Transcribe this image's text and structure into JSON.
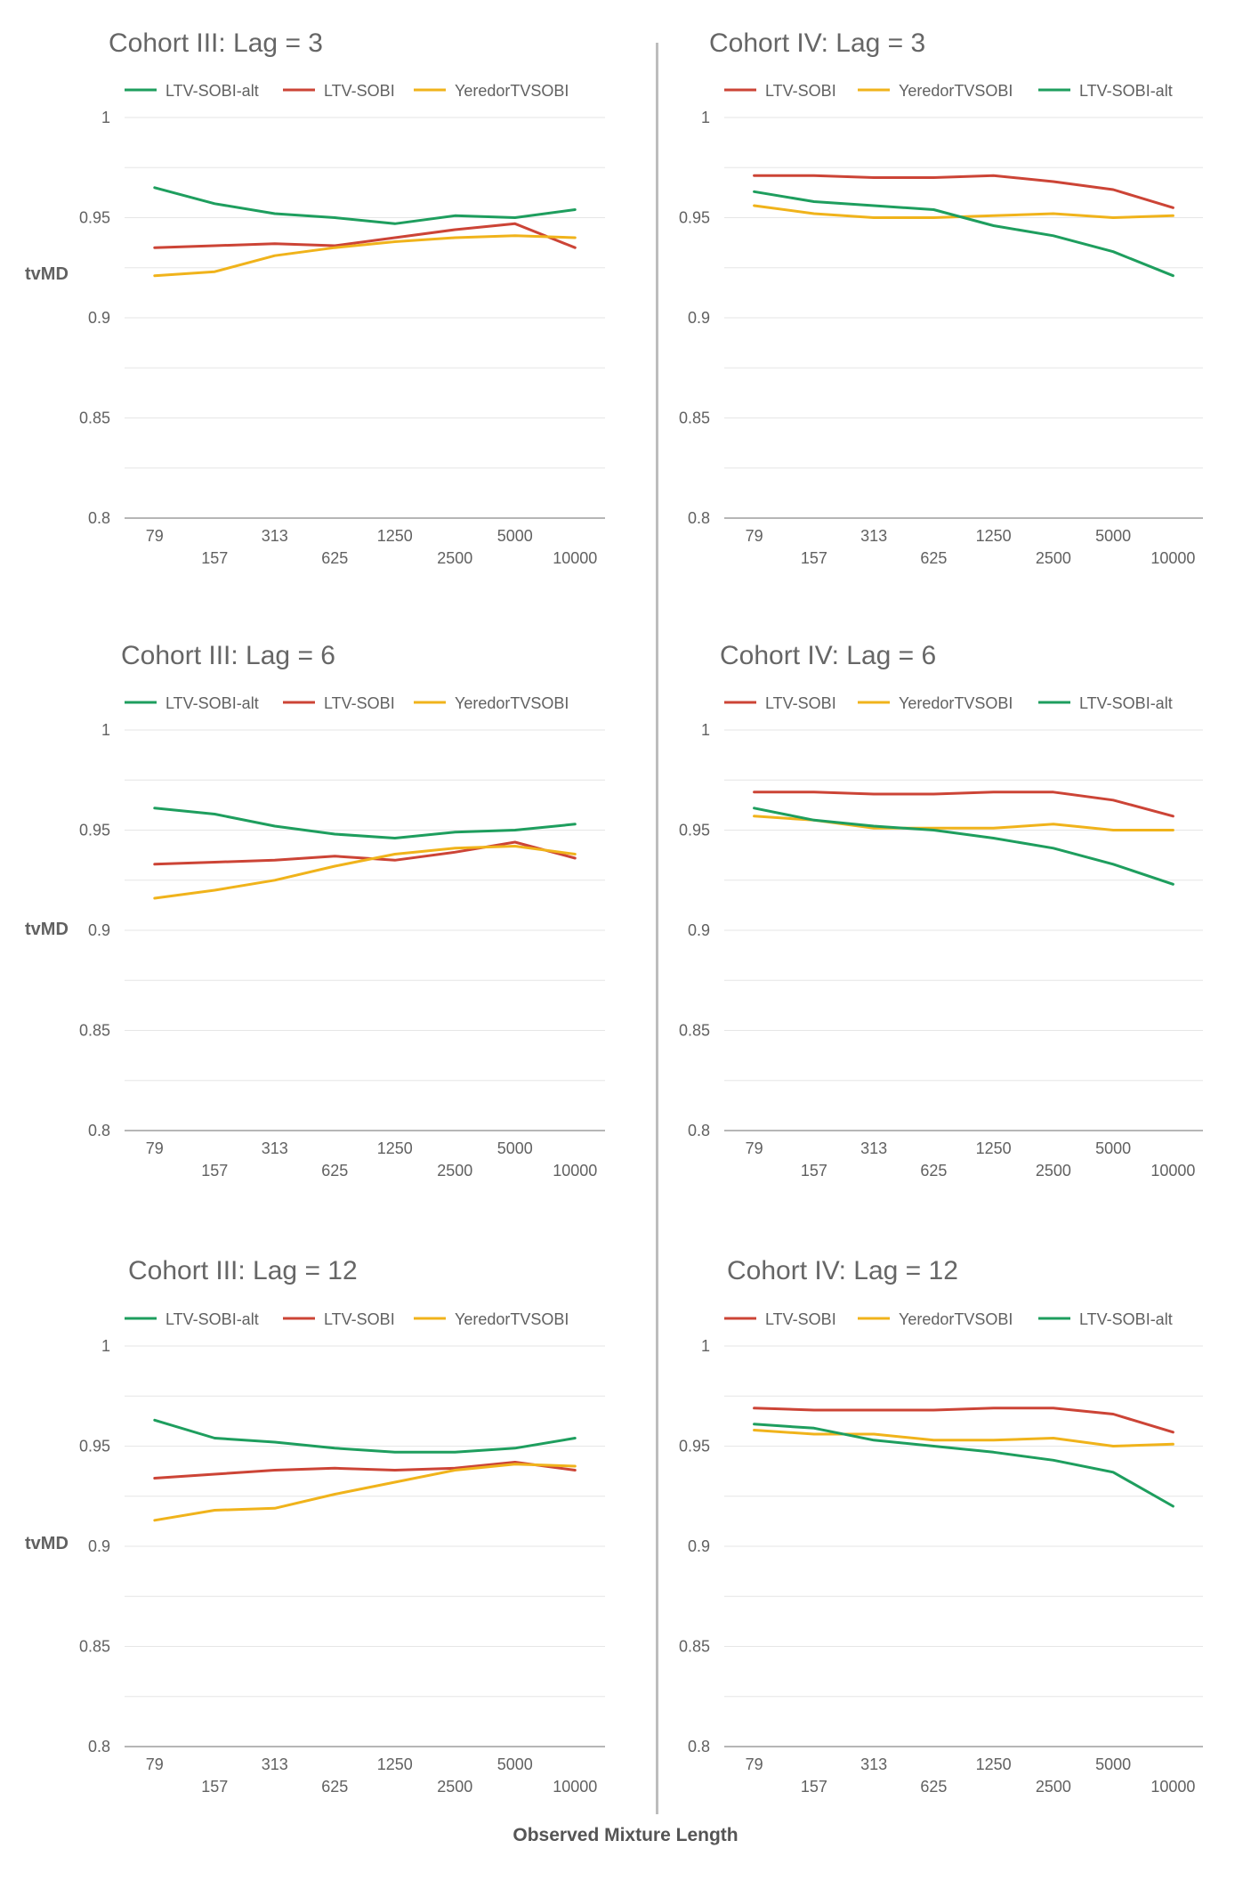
{
  "figure": {
    "xlabel": "Observed Mixture Length",
    "ylabel": "tvMD"
  },
  "colors": {
    "LTV-SOBI-alt": "#1e9e5e",
    "LTV-SOBI": "#cc4436",
    "YeredorTVSOBI": "#f0b31b",
    "grid": "#e6e6e6",
    "axis": "#9e9e9e",
    "text": "#616161",
    "title": "#666666"
  },
  "chart_data": [
    {
      "type": "line",
      "title": "Cohort III: Lag = 3",
      "ylabel": "tvMD",
      "categories": [
        "79",
        "157",
        "313",
        "625",
        "1250",
        "2500",
        "5000",
        "10000"
      ],
      "ylim": [
        0.8,
        1.0
      ],
      "yticks": [
        0.8,
        0.85,
        0.9,
        0.95,
        1
      ],
      "ytick_labels": [
        "0.8",
        "0.85",
        "0.9",
        "0.95",
        "1"
      ],
      "grid": true,
      "legend_position": "top",
      "series": [
        {
          "name": "LTV-SOBI-alt",
          "values": [
            0.965,
            0.957,
            0.952,
            0.95,
            0.947,
            0.951,
            0.95,
            0.954
          ]
        },
        {
          "name": "LTV-SOBI",
          "values": [
            0.935,
            0.936,
            0.937,
            0.936,
            0.94,
            0.944,
            0.947,
            0.935
          ]
        },
        {
          "name": "YeredorTVSOBI",
          "values": [
            0.921,
            0.923,
            0.931,
            0.935,
            0.938,
            0.94,
            0.941,
            0.94
          ]
        }
      ]
    },
    {
      "type": "line",
      "title": "Cohort IV: Lag = 3",
      "ylabel": "",
      "categories": [
        "79",
        "157",
        "313",
        "625",
        "1250",
        "2500",
        "5000",
        "10000"
      ],
      "ylim": [
        0.8,
        1.0
      ],
      "yticks": [
        0.8,
        0.85,
        0.9,
        0.95,
        1
      ],
      "ytick_labels": [
        "0.8",
        "0.85",
        "0.9",
        "0.95",
        "1"
      ],
      "grid": true,
      "legend_position": "top",
      "series": [
        {
          "name": "LTV-SOBI",
          "values": [
            0.971,
            0.971,
            0.97,
            0.97,
            0.971,
            0.968,
            0.964,
            0.955
          ]
        },
        {
          "name": "YeredorTVSOBI",
          "values": [
            0.956,
            0.952,
            0.95,
            0.95,
            0.951,
            0.952,
            0.95,
            0.951
          ]
        },
        {
          "name": "LTV-SOBI-alt",
          "values": [
            0.963,
            0.958,
            0.956,
            0.954,
            0.946,
            0.941,
            0.933,
            0.921
          ]
        }
      ]
    },
    {
      "type": "line",
      "title": "Cohort III: Lag = 6",
      "ylabel": "tvMD",
      "categories": [
        "79",
        "157",
        "313",
        "625",
        "1250",
        "2500",
        "5000",
        "10000"
      ],
      "ylim": [
        0.8,
        1.0
      ],
      "yticks": [
        0.8,
        0.85,
        0.9,
        0.95,
        1
      ],
      "ytick_labels": [
        "0.8",
        "0.85",
        "0.9",
        "0.95",
        "1"
      ],
      "grid": true,
      "legend_position": "top",
      "series": [
        {
          "name": "LTV-SOBI-alt",
          "values": [
            0.961,
            0.958,
            0.952,
            0.948,
            0.946,
            0.949,
            0.95,
            0.953
          ]
        },
        {
          "name": "LTV-SOBI",
          "values": [
            0.933,
            0.934,
            0.935,
            0.937,
            0.935,
            0.939,
            0.944,
            0.936
          ]
        },
        {
          "name": "YeredorTVSOBI",
          "values": [
            0.916,
            0.92,
            0.925,
            0.932,
            0.938,
            0.941,
            0.942,
            0.938
          ]
        }
      ]
    },
    {
      "type": "line",
      "title": "Cohort IV: Lag = 6",
      "ylabel": "",
      "categories": [
        "79",
        "157",
        "313",
        "625",
        "1250",
        "2500",
        "5000",
        "10000"
      ],
      "ylim": [
        0.8,
        1.0
      ],
      "yticks": [
        0.8,
        0.85,
        0.9,
        0.95,
        1
      ],
      "ytick_labels": [
        "0.8",
        "0.85",
        "0.9",
        "0.95",
        "1"
      ],
      "grid": true,
      "legend_position": "top",
      "series": [
        {
          "name": "LTV-SOBI",
          "values": [
            0.969,
            0.969,
            0.968,
            0.968,
            0.969,
            0.969,
            0.965,
            0.957
          ]
        },
        {
          "name": "YeredorTVSOBI",
          "values": [
            0.957,
            0.955,
            0.951,
            0.951,
            0.951,
            0.953,
            0.95,
            0.95
          ]
        },
        {
          "name": "LTV-SOBI-alt",
          "values": [
            0.961,
            0.955,
            0.952,
            0.95,
            0.946,
            0.941,
            0.933,
            0.923
          ]
        }
      ]
    },
    {
      "type": "line",
      "title": "Cohort III: Lag = 12",
      "ylabel": "tvMD",
      "categories": [
        "79",
        "157",
        "313",
        "625",
        "1250",
        "2500",
        "5000",
        "10000"
      ],
      "ylim": [
        0.8,
        1.0
      ],
      "yticks": [
        0.8,
        0.85,
        0.9,
        0.95,
        1
      ],
      "ytick_labels": [
        "0.8",
        "0.85",
        "0.9",
        "0.95",
        "1"
      ],
      "grid": true,
      "legend_position": "top",
      "series": [
        {
          "name": "LTV-SOBI-alt",
          "values": [
            0.963,
            0.954,
            0.952,
            0.949,
            0.947,
            0.947,
            0.949,
            0.954
          ]
        },
        {
          "name": "LTV-SOBI",
          "values": [
            0.934,
            0.936,
            0.938,
            0.939,
            0.938,
            0.939,
            0.942,
            0.938
          ]
        },
        {
          "name": "YeredorTVSOBI",
          "values": [
            0.913,
            0.918,
            0.919,
            0.926,
            0.932,
            0.938,
            0.941,
            0.94
          ]
        }
      ]
    },
    {
      "type": "line",
      "title": "Cohort IV: Lag = 12",
      "ylabel": "",
      "categories": [
        "79",
        "157",
        "313",
        "625",
        "1250",
        "2500",
        "5000",
        "10000"
      ],
      "ylim": [
        0.8,
        1.0
      ],
      "yticks": [
        0.8,
        0.85,
        0.9,
        0.95,
        1
      ],
      "ytick_labels": [
        "0.8",
        "0.85",
        "0.9",
        "0.95",
        "1"
      ],
      "grid": true,
      "legend_position": "top",
      "series": [
        {
          "name": "LTV-SOBI",
          "values": [
            0.969,
            0.968,
            0.968,
            0.968,
            0.969,
            0.969,
            0.966,
            0.957
          ]
        },
        {
          "name": "YeredorTVSOBI",
          "values": [
            0.958,
            0.956,
            0.956,
            0.953,
            0.953,
            0.954,
            0.95,
            0.951
          ]
        },
        {
          "name": "LTV-SOBI-alt",
          "values": [
            0.961,
            0.959,
            0.953,
            0.95,
            0.947,
            0.943,
            0.937,
            0.92
          ]
        }
      ]
    }
  ]
}
